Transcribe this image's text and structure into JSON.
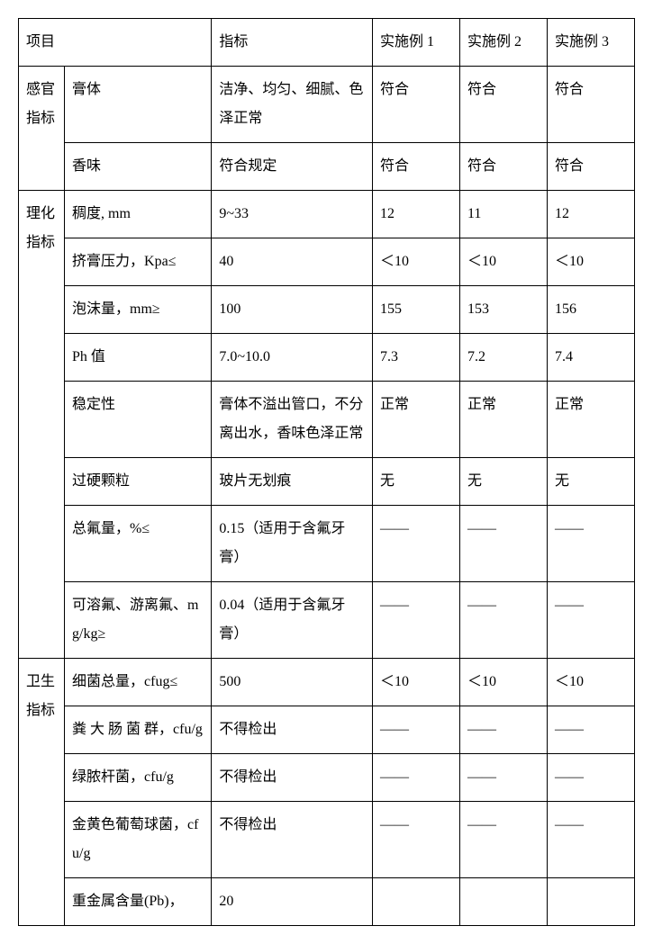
{
  "header": {
    "project": "项目",
    "standard": "指标",
    "ex1": "实施例 1",
    "ex2": "实施例 2",
    "ex3": "实施例 3"
  },
  "categories": {
    "sensory": "感官指标",
    "physchem": "理化指标",
    "hygiene": "卫生指标"
  },
  "rows": {
    "paste": {
      "item": "膏体",
      "std": "洁净、均匀、细腻、色泽正常",
      "ex1": "符合",
      "ex2": "符合",
      "ex3": "符合"
    },
    "fragrance": {
      "item": "香味",
      "std": "符合规定",
      "ex1": "符合",
      "ex2": "符合",
      "ex3": "符合"
    },
    "viscosity": {
      "item": "稠度, mm",
      "std": "9~33",
      "ex1": "12",
      "ex2": "11",
      "ex3": "12"
    },
    "pressure": {
      "item": "挤膏压力，Kpa≤",
      "std": "40",
      "ex1": "＜10",
      "ex2": "＜10",
      "ex3": "＜10"
    },
    "foam": {
      "item": "泡沫量，mm≥",
      "std": "100",
      "ex1": "155",
      "ex2": "153",
      "ex3": "156"
    },
    "ph": {
      "item": "Ph 值",
      "std": "7.0~10.0",
      "ex1": "7.3",
      "ex2": "7.2",
      "ex3": "7.4"
    },
    "stability": {
      "item": "稳定性",
      "std": "膏体不溢出管口，不分离出水，香味色泽正常",
      "ex1": "正常",
      "ex2": "正常",
      "ex3": "正常"
    },
    "hardparticle": {
      "item": "过硬颗粒",
      "std": "玻片无划痕",
      "ex1": "无",
      "ex2": "无",
      "ex3": "无"
    },
    "totalf": {
      "item": "总氟量，%≤",
      "std": "0.15（适用于含氟牙膏）",
      "ex1": "——",
      "ex2": "——",
      "ex3": "——"
    },
    "solublef": {
      "item": "可溶氟、游离氟、mg/kg≥",
      "std": "0.04（适用于含氟牙膏）",
      "ex1": "——",
      "ex2": "——",
      "ex3": "——"
    },
    "bacteria": {
      "item": "细菌总量，cfug≤",
      "std": "500",
      "ex1": "＜10",
      "ex2": "＜10",
      "ex3": "＜10"
    },
    "fecal": {
      "item": "粪 大 肠 菌 群，cfu/g",
      "std": "不得检出",
      "ex1": "——",
      "ex2": "——",
      "ex3": "——"
    },
    "pseudo": {
      "item": "绿脓杆菌，cfu/g",
      "std": "不得检出",
      "ex1": "——",
      "ex2": "——",
      "ex3": "——"
    },
    "staph": {
      "item": "金黄色葡萄球菌，cfu/g",
      "std": "不得检出",
      "ex1": "——",
      "ex2": "——",
      "ex3": "——"
    },
    "heavymetal": {
      "item": "重金属含量(Pb)，",
      "std": "20",
      "ex1": "",
      "ex2": "",
      "ex3": ""
    }
  }
}
